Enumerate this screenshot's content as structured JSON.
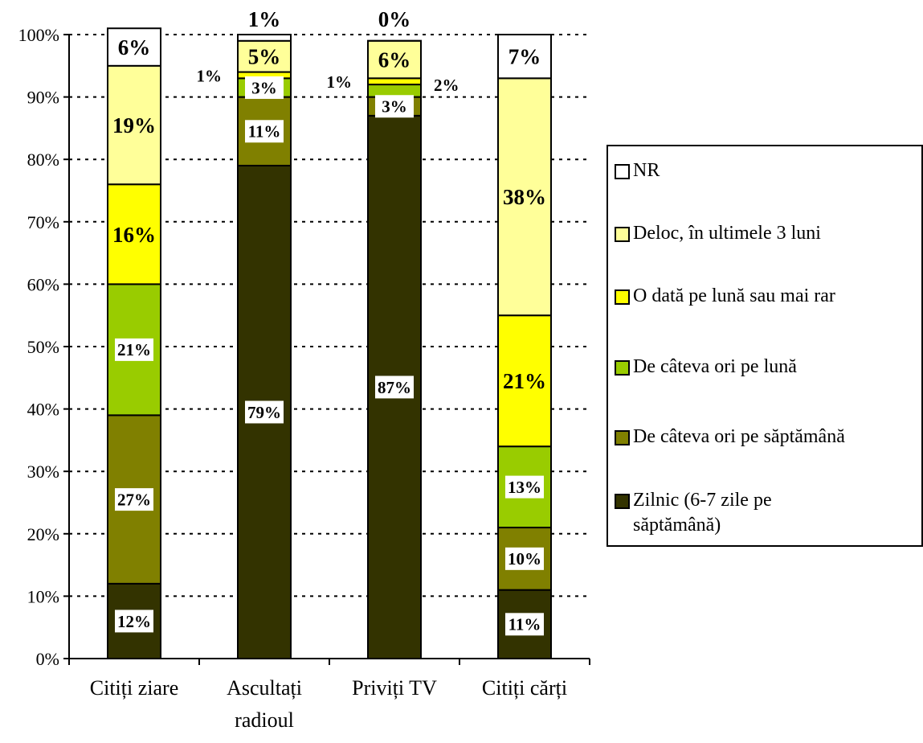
{
  "chart_data": {
    "type": "bar",
    "stacked": true,
    "categories": [
      "Citiți ziare",
      "Ascultați\nradioul",
      "Priviți TV",
      "Citiți cărți"
    ],
    "series": [
      {
        "name": "Zilnic (6-7 zile pe\nsăptămână)",
        "color": "#333300",
        "values": [
          12,
          79,
          87,
          11
        ],
        "labels": [
          "12%",
          "79%",
          "87%",
          "11%"
        ]
      },
      {
        "name": "De câteva ori pe săptămână",
        "color": "#808000",
        "values": [
          27,
          11,
          3,
          10
        ],
        "labels": [
          "27%",
          "11%",
          "3%",
          "10%"
        ]
      },
      {
        "name": "De câteva ori pe lună",
        "color": "#99CC00",
        "values": [
          21,
          3,
          2,
          13
        ],
        "labels": [
          "21%",
          "3%",
          "2%",
          "13%"
        ]
      },
      {
        "name": "O dată pe lună sau mai rar",
        "color": "#FFFF00",
        "values": [
          16,
          1,
          1,
          21
        ],
        "labels": [
          "16%",
          "1%",
          "1%",
          "21%"
        ]
      },
      {
        "name": "Deloc, în ultimele 3 luni",
        "color": "#FFFF99",
        "values": [
          19,
          5,
          6,
          38
        ],
        "labels": [
          "19%",
          "5%",
          "6%",
          "38%"
        ]
      },
      {
        "name": "NR",
        "color": "#FFFFFF",
        "values": [
          6,
          1,
          0,
          7
        ],
        "labels": [
          "6%",
          "1%",
          "0%",
          "7%"
        ]
      }
    ],
    "y_ticks": [
      "0%",
      "10%",
      "20%",
      "30%",
      "40%",
      "50%",
      "60%",
      "70%",
      "80%",
      "90%",
      "100%"
    ],
    "ylim": [
      0,
      100
    ],
    "grid": true,
    "legend_position": "right"
  }
}
